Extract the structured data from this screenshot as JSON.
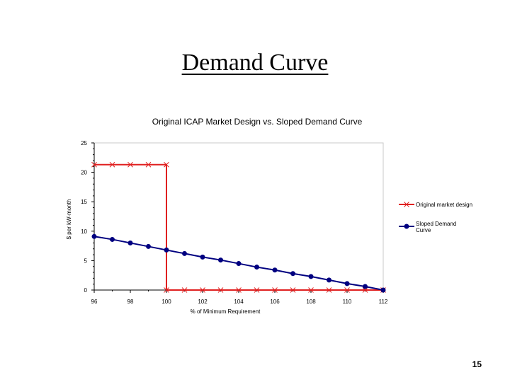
{
  "slide": {
    "title": "Demand Curve",
    "page_number": "15"
  },
  "chart_data": {
    "type": "line",
    "title": "Original ICAP Market Design vs. Sloped Demand Curve",
    "xlabel": "% of Minimum Requirement",
    "ylabel": "$ per kW-month",
    "xlim": [
      96,
      112
    ],
    "ylim": [
      0,
      25
    ],
    "x_ticks": [
      "96",
      "98",
      "100",
      "102",
      "104",
      "106",
      "108",
      "110",
      "112"
    ],
    "y_ticks": [
      "0",
      "5",
      "10",
      "15",
      "20",
      "25"
    ],
    "grid": false,
    "legend_position": "right",
    "series": [
      {
        "name": "Original market design",
        "color": "#e02020",
        "marker": "x",
        "x": [
          96,
          97,
          98,
          99,
          100,
          100,
          101,
          102,
          103,
          104,
          105,
          106,
          107,
          108,
          109,
          110,
          111,
          112
        ],
        "y": [
          21.3,
          21.3,
          21.3,
          21.3,
          21.3,
          0,
          0,
          0,
          0,
          0,
          0,
          0,
          0,
          0,
          0,
          0,
          0,
          0
        ]
      },
      {
        "name": "Sloped Demand Curve",
        "color": "#000080",
        "marker": "circle",
        "x": [
          96,
          97,
          98,
          99,
          100,
          101,
          102,
          103,
          104,
          105,
          106,
          107,
          108,
          109,
          110,
          111,
          112
        ],
        "y": [
          9.1,
          8.6,
          8.0,
          7.4,
          6.8,
          6.2,
          5.6,
          5.1,
          4.5,
          3.9,
          3.4,
          2.8,
          2.3,
          1.7,
          1.1,
          0.6,
          0
        ]
      }
    ]
  }
}
